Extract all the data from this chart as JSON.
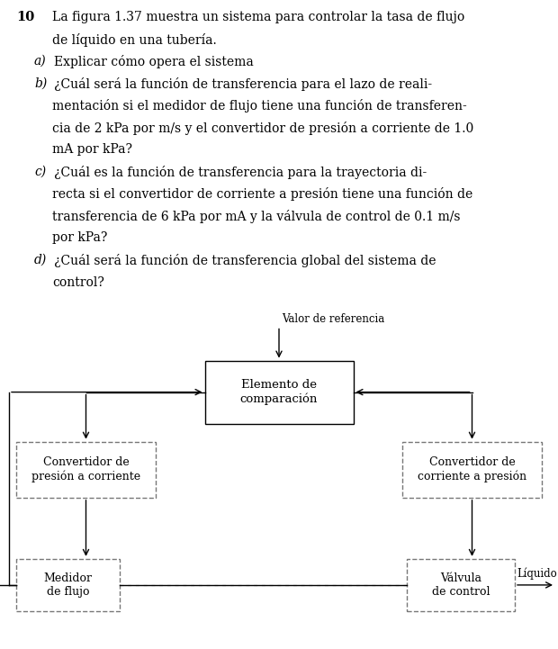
{
  "title_number": "10",
  "title_text_lines": [
    {
      "text": "La figura 1.37 muestra un sistema para controlar la tasa de flujo",
      "indent": false,
      "italic": false
    },
    {
      "text": "de líquido en una tubería.",
      "indent": false,
      "italic": false
    },
    {
      "text": "a)   Explicar cómo opera el sistema",
      "indent": true,
      "italic": true,
      "label": "a)"
    },
    {
      "text": "b)   ¿Cuál será la función de transferencia para el lazo de reali-",
      "indent": true,
      "italic": true,
      "label": "b)"
    },
    {
      "text": "mentación si el medidor de flujo tiene una función de transferen-",
      "indent": true,
      "italic": false
    },
    {
      "text": "cia de 2 kPa por m/s y el convertidor de presión a corriente de 1.0",
      "indent": true,
      "italic": false
    },
    {
      "text": "mA por kPa?",
      "indent": true,
      "italic": false
    },
    {
      "text": "c)   ¿Cuál es la función de transferencia para la trayectoria di-",
      "indent": true,
      "italic": true,
      "label": "c)"
    },
    {
      "text": "recta si el convertidor de corriente a presión tiene una función de",
      "indent": true,
      "italic": false
    },
    {
      "text": "transferencia de 6 kPa por mA y la válvula de control de 0.1 m/s",
      "indent": true,
      "italic": false
    },
    {
      "text": "por kPa?",
      "indent": true,
      "italic": false
    },
    {
      "text": "d)   ¿Cuál será la función de transferencia global del sistema de",
      "indent": true,
      "italic": true,
      "label": "d)"
    },
    {
      "text": "control?",
      "indent": true,
      "italic": false
    }
  ],
  "bg_color": "#ffffff",
  "text_color": "#000000",
  "box_edge_color": "#000000",
  "dashed_edge_color": "#777777",
  "diagram": {
    "ref_label": "Valor de referencia",
    "liquid_label": "Líquido",
    "comparator_label": "Elemento de\ncomparación",
    "conv_left_label": "Convertidor de\npresión a corriente",
    "conv_right_label": "Convertidor de\ncorriente a presión",
    "flow_meter_label": "Medidor\nde flujo",
    "control_valve_label": "Válvula\nde control"
  }
}
